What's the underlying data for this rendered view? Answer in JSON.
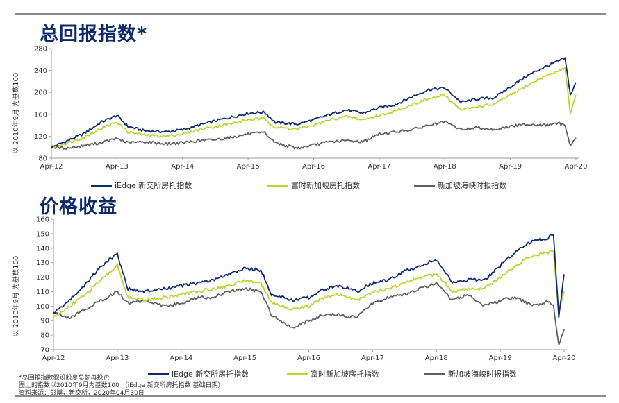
{
  "titles": [
    "总回报指数*",
    "价格收益"
  ],
  "colors": {
    "iedge": "#102a6e",
    "fu": "#bcd431",
    "sg": "#5f5f5f",
    "title": "#0f2a6b"
  },
  "footnotes": [
    "*总回报指数假设股息总额再投资",
    "图上的指数以2010年9月为基数100 （iEdge 新交所房托指数 基础日期）",
    "资料来源：彭博，新交所，2020年04月30日"
  ],
  "chart_data": [
    {
      "type": "line",
      "title": "总回报指数*",
      "ylabel": "以 2010年9月 为基数100",
      "xlabel": "",
      "x_ticks": [
        "Apr-12",
        "Apr-13",
        "Apr-14",
        "Apr-15",
        "Apr-16",
        "Apr-17",
        "Apr-18",
        "Apr-19",
        "Apr-20"
      ],
      "y_ticks": [
        80,
        120,
        160,
        200,
        240,
        280
      ],
      "ylim": [
        80,
        280
      ],
      "grid": false,
      "legend_position": "bottom",
      "x": [
        "2012-04",
        "2012-07",
        "2012-10",
        "2013-01",
        "2013-04",
        "2013-06",
        "2013-09",
        "2014-01",
        "2014-04",
        "2014-07",
        "2014-10",
        "2015-01",
        "2015-04",
        "2015-07",
        "2015-09",
        "2016-01",
        "2016-04",
        "2016-07",
        "2016-10",
        "2017-01",
        "2017-04",
        "2017-07",
        "2017-10",
        "2018-01",
        "2018-04",
        "2018-07",
        "2018-10",
        "2019-01",
        "2019-04",
        "2019-07",
        "2019-10",
        "2020-01",
        "2020-02",
        "2020-03",
        "2020-04"
      ],
      "series": [
        {
          "name": "iEdge 新交所房托指数",
          "color": "#102a6e",
          "values": [
            100,
            112,
            125,
            145,
            158,
            138,
            130,
            128,
            132,
            140,
            148,
            155,
            162,
            164,
            145,
            142,
            150,
            160,
            168,
            162,
            172,
            178,
            192,
            205,
            208,
            182,
            188,
            190,
            210,
            230,
            245,
            258,
            262,
            195,
            218
          ]
        },
        {
          "name": "富时新加坡房托指数",
          "color": "#bcd431",
          "values": [
            100,
            108,
            118,
            134,
            146,
            128,
            122,
            120,
            124,
            132,
            138,
            143,
            150,
            152,
            136,
            133,
            140,
            150,
            156,
            150,
            158,
            166,
            178,
            188,
            195,
            168,
            174,
            178,
            195,
            212,
            228,
            240,
            246,
            160,
            195
          ]
        },
        {
          "name": "新加坡海峡时报指数",
          "color": "#5f5f5f",
          "values": [
            100,
            98,
            103,
            108,
            116,
            108,
            110,
            106,
            108,
            112,
            114,
            118,
            124,
            126,
            108,
            98,
            104,
            110,
            112,
            110,
            124,
            128,
            132,
            140,
            146,
            132,
            136,
            132,
            138,
            142,
            140,
            143,
            140,
            103,
            117
          ]
        }
      ]
    },
    {
      "type": "line",
      "title": "价格收益",
      "ylabel": "以 2010年9月 为基数100",
      "xlabel": "",
      "x_ticks": [
        "Apr-12",
        "Apr-13",
        "Apr-14",
        "Apr-15",
        "Apr-16",
        "Apr-17",
        "Apr-18",
        "Apr-19",
        "Apr-20"
      ],
      "y_ticks": [
        70,
        80,
        90,
        100,
        110,
        120,
        130,
        140,
        150,
        160
      ],
      "ylim": [
        70,
        160
      ],
      "grid": false,
      "legend_position": "bottom",
      "x": [
        "2012-04",
        "2012-07",
        "2012-10",
        "2013-01",
        "2013-04",
        "2013-06",
        "2013-09",
        "2014-01",
        "2014-04",
        "2014-07",
        "2014-10",
        "2015-01",
        "2015-04",
        "2015-07",
        "2015-09",
        "2016-01",
        "2016-04",
        "2016-07",
        "2016-10",
        "2017-01",
        "2017-04",
        "2017-07",
        "2017-10",
        "2018-01",
        "2018-04",
        "2018-07",
        "2018-10",
        "2019-01",
        "2019-04",
        "2019-07",
        "2019-10",
        "2020-01",
        "2020-02",
        "2020-03",
        "2020-04"
      ],
      "series": [
        {
          "name": "iEdge 新交所房托指数",
          "color": "#102a6e",
          "values": [
            95,
            104,
            115,
            128,
            136,
            112,
            110,
            112,
            114,
            116,
            118,
            122,
            126,
            125,
            108,
            104,
            106,
            112,
            114,
            110,
            116,
            118,
            124,
            128,
            132,
            116,
            118,
            118,
            128,
            138,
            145,
            147,
            150,
            93,
            122
          ]
        },
        {
          "name": "富时新加坡房托指数",
          "color": "#bcd431",
          "values": [
            92,
            100,
            108,
            118,
            128,
            106,
            104,
            106,
            108,
            110,
            112,
            114,
            118,
            116,
            102,
            98,
            100,
            106,
            108,
            104,
            110,
            112,
            116,
            120,
            122,
            110,
            112,
            112,
            120,
            128,
            135,
            137,
            138,
            95,
            110
          ]
        },
        {
          "name": "新加坡海峡时报指数",
          "color": "#5f5f5f",
          "values": [
            96,
            92,
            98,
            104,
            110,
            102,
            104,
            100,
            102,
            106,
            106,
            110,
            112,
            110,
            94,
            85,
            90,
            94,
            94,
            92,
            102,
            106,
            108,
            112,
            116,
            104,
            108,
            100,
            104,
            106,
            100,
            103,
            101,
            73,
            84
          ]
        }
      ]
    }
  ]
}
